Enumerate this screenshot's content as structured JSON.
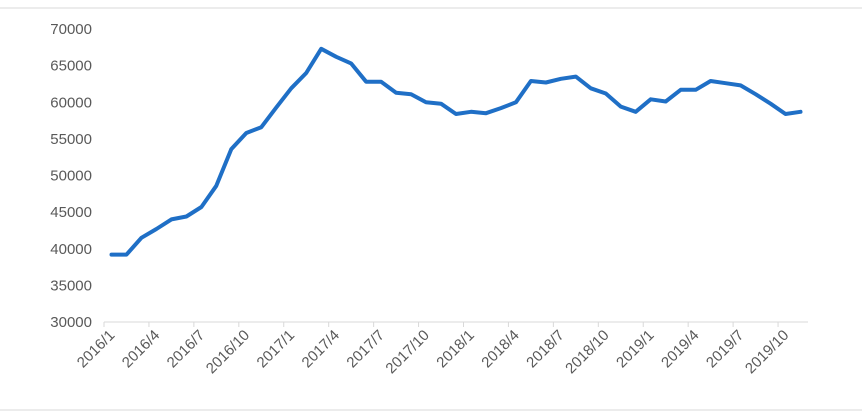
{
  "chart_data": {
    "type": "line",
    "title": "",
    "xlabel": "",
    "ylabel": "",
    "ylim": [
      30000,
      70000
    ],
    "yticks": [
      30000,
      35000,
      40000,
      45000,
      50000,
      55000,
      60000,
      65000,
      70000
    ],
    "ytick_labels": [
      "30000",
      "35000",
      "40000",
      "45000",
      "50000",
      "55000",
      "60000",
      "65000",
      "70000"
    ],
    "xtick_labels": [
      "2016/1",
      "2016/4",
      "2016/7",
      "2016/10",
      "2017/1",
      "2017/4",
      "2017/7",
      "2017/10",
      "2018/1",
      "2018/4",
      "2018/7",
      "2018/10",
      "2019/1",
      "2019/4",
      "2019/7",
      "2019/10"
    ],
    "x": [
      "2016/1",
      "2016/2",
      "2016/3",
      "2016/4",
      "2016/5",
      "2016/6",
      "2016/7",
      "2016/8",
      "2016/9",
      "2016/10",
      "2016/11",
      "2016/12",
      "2017/1",
      "2017/2",
      "2017/3",
      "2017/4",
      "2017/5",
      "2017/6",
      "2017/7",
      "2017/8",
      "2017/9",
      "2017/10",
      "2017/11",
      "2017/12",
      "2018/1",
      "2018/2",
      "2018/3",
      "2018/4",
      "2018/5",
      "2018/6",
      "2018/7",
      "2018/8",
      "2018/9",
      "2018/10",
      "2018/11",
      "2018/12",
      "2019/1",
      "2019/2",
      "2019/3",
      "2019/4",
      "2019/5",
      "2019/6",
      "2019/7",
      "2019/8",
      "2019/9",
      "2019/10",
      "2019/11"
    ],
    "series": [
      {
        "color": "#1f6fc6",
        "values": [
          39200,
          39200,
          41500,
          42700,
          44000,
          44400,
          45700,
          48600,
          53600,
          55800,
          56600,
          59300,
          61900,
          64000,
          67300,
          66200,
          65300,
          62800,
          62800,
          61300,
          61100,
          60000,
          59800,
          58400,
          58700,
          58500,
          59200,
          60000,
          62900,
          62700,
          63200,
          63500,
          61900,
          61200,
          59400,
          58700,
          60400,
          60100,
          61700,
          61700,
          62900,
          62600,
          62300,
          61100,
          59800,
          58400,
          58700
        ]
      }
    ],
    "grid": false,
    "legend": "none"
  },
  "colors": {
    "line": "#1f6fc6",
    "axis": "#d9d9d9",
    "text": "#595959"
  }
}
